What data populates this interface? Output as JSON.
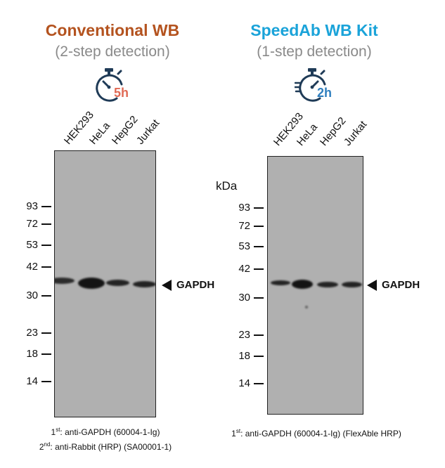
{
  "left": {
    "title": "Conventional WB",
    "title_color": "#b4531f",
    "subtitle": "(2-step detection)",
    "timer_label": "5h",
    "timer_color": "#e06a55",
    "lanes": [
      "HEK293",
      "HeLa",
      "HepG2",
      "Jurkat"
    ],
    "markers": [
      "93",
      "72",
      "53",
      "42",
      "30",
      "23",
      "18",
      "14"
    ],
    "band_label": "GAPDH",
    "footnote_line1_sup": "st",
    "footnote_line1": "1",
    "footnote_line1_text": ": anti-GAPDH (60004-1-Ig)",
    "footnote_line2": "2",
    "footnote_line2_sup": "nd",
    "footnote_line2_text": ": anti-Rabbit (HRP) (SA00001-1)"
  },
  "right": {
    "title": "SpeedAb WB Kit",
    "title_color": "#1aa3d9",
    "subtitle": "(1-step detection)",
    "timer_label": "2h",
    "timer_color": "#2f7fbf",
    "lanes": [
      "HEK293",
      "HeLa",
      "HepG2",
      "Jurkat"
    ],
    "kda_label": "kDa",
    "markers": [
      "93",
      "72",
      "53",
      "42",
      "30",
      "23",
      "18",
      "14"
    ],
    "band_label": "GAPDH",
    "footnote_line1": "1",
    "footnote_line1_sup": "st",
    "footnote_line1_text": ": anti-GAPDH (60004-1-Ig) (FlexAble HRP)"
  },
  "colors": {
    "timer_dark": "#1f3b57",
    "blot_bg": "#b0b0b0",
    "band": "#141414"
  },
  "icons": [
    "stopwatch-icon",
    "arrow-left-icon"
  ]
}
